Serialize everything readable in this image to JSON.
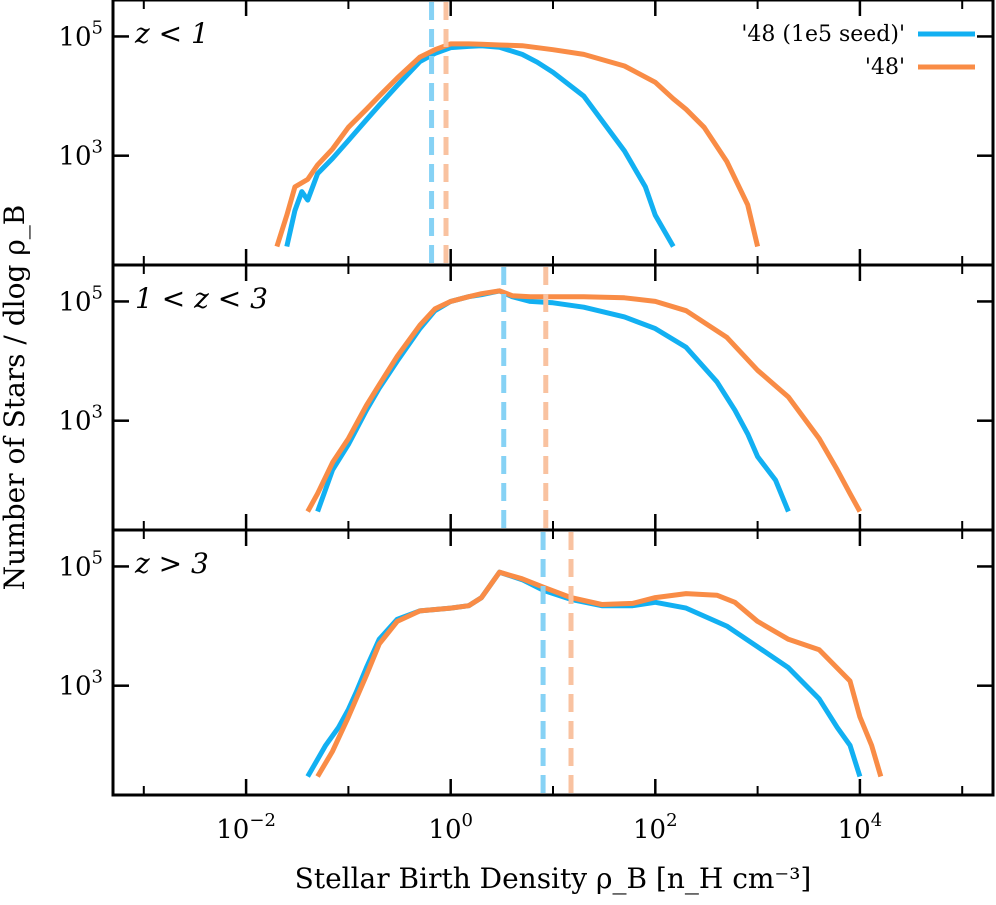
{
  "chart_data": {
    "type": "line",
    "xlabel": "Stellar Birth Density ρ_B [n_H cm⁻³]",
    "ylabel": "Number of Stars / dlog ρ_B",
    "x_scale": "log",
    "y_scale": "log",
    "xlim": [
      0.0005,
      200000
    ],
    "ylim": [
      20,
      300000
    ],
    "x_ticks": [
      {
        "value": 0.01,
        "base": "10",
        "exp": "−2"
      },
      {
        "value": 1,
        "base": "10",
        "exp": "0"
      },
      {
        "value": 100,
        "base": "10",
        "exp": "2"
      },
      {
        "value": 10000,
        "base": "10",
        "exp": "4"
      }
    ],
    "y_ticks": [
      {
        "value": 1000,
        "base": "10",
        "exp": "3"
      },
      {
        "value": 100000,
        "base": "10",
        "exp": "5"
      }
    ],
    "legend": {
      "placement": "top-right",
      "entries": [
        {
          "label": "'48 (1e5 seed)'",
          "color": "#12b0f2"
        },
        {
          "label": "'48'",
          "color": "#f98c46"
        }
      ]
    },
    "colors": {
      "seed": "#12b0f2",
      "base": "#f98c46",
      "seed_median": "#86d2f5",
      "base_median": "#f9c2a0"
    },
    "panels": [
      {
        "label": "z < 1",
        "series": [
          {
            "name": "'48 (1e5 seed)'",
            "color": "#12b0f2",
            "median": 0.65,
            "x": [
              0.025,
              0.03,
              0.035,
              0.04,
              0.05,
              0.07,
              0.1,
              0.15,
              0.2,
              0.3,
              0.5,
              0.7,
              1,
              1.5,
              2,
              3,
              5,
              7,
              10,
              20,
              50,
              80,
              100,
              150
            ],
            "y": [
              30,
              120,
              250,
              180,
              500,
              900,
              1800,
              4000,
              7000,
              15000,
              38000,
              52000,
              65000,
              68000,
              70000,
              66000,
              50000,
              37000,
              25000,
              10000,
              1200,
              300,
              100,
              30
            ]
          },
          {
            "name": "'48'",
            "color": "#f98c46",
            "median": 0.9,
            "x": [
              0.02,
              0.025,
              0.03,
              0.04,
              0.05,
              0.07,
              0.1,
              0.15,
              0.2,
              0.3,
              0.5,
              0.7,
              1,
              1.5,
              2,
              3,
              5,
              10,
              20,
              50,
              100,
              150,
              200,
              300,
              500,
              800,
              1000
            ],
            "y": [
              30,
              100,
              300,
              400,
              700,
              1300,
              3000,
              6000,
              10000,
              20000,
              45000,
              60000,
              75000,
              75000,
              74000,
              72000,
              70000,
              60000,
              50000,
              32000,
              17000,
              9000,
              6000,
              3000,
              800,
              150,
              30
            ]
          }
        ]
      },
      {
        "label": "1 < z < 3",
        "series": [
          {
            "name": "'48 (1e5 seed)'",
            "color": "#12b0f2",
            "median": 3.3,
            "x": [
              0.05,
              0.07,
              0.1,
              0.15,
              0.2,
              0.3,
              0.5,
              0.7,
              1,
              1.5,
              2,
              3,
              4,
              6,
              10,
              20,
              50,
              100,
              200,
              400,
              600,
              800,
              1000,
              1500,
              2000
            ],
            "y": [
              30,
              150,
              400,
              1500,
              3500,
              10000,
              35000,
              70000,
              100000,
              120000,
              130000,
              150000,
              120000,
              100000,
              95000,
              80000,
              55000,
              35000,
              17000,
              4500,
              1500,
              600,
              250,
              100,
              30
            ]
          },
          {
            "name": "'48'",
            "color": "#f98c46",
            "median": 8.5,
            "x": [
              0.04,
              0.05,
              0.07,
              0.1,
              0.15,
              0.2,
              0.3,
              0.5,
              0.7,
              1,
              1.5,
              2,
              3,
              4,
              6,
              10,
              20,
              50,
              100,
              200,
              500,
              1000,
              2000,
              4000,
              6000,
              8000,
              10000
            ],
            "y": [
              30,
              60,
              200,
              500,
              1800,
              4000,
              12000,
              40000,
              75000,
              100000,
              120000,
              135000,
              150000,
              125000,
              120000,
              120000,
              120000,
              115000,
              100000,
              70000,
              25000,
              7000,
              2500,
              500,
              150,
              60,
              30
            ]
          }
        ]
      },
      {
        "label": "z > 3",
        "series": [
          {
            "name": "'48 (1e5 seed)'",
            "color": "#12b0f2",
            "median": 8,
            "x": [
              0.04,
              0.06,
              0.08,
              0.1,
              0.12,
              0.15,
              0.2,
              0.3,
              0.5,
              1,
              1.5,
              2,
              3,
              5,
              8,
              15,
              30,
              60,
              100,
              200,
              500,
              1000,
              2000,
              4000,
              6000,
              8000,
              10000
            ],
            "y": [
              30,
              100,
              200,
              400,
              800,
              2000,
              6000,
              13000,
              18000,
              20000,
              22000,
              30000,
              80000,
              60000,
              40000,
              28000,
              22000,
              22000,
              25000,
              20000,
              10000,
              4500,
              2000,
              600,
              200,
              100,
              30
            ]
          },
          {
            "name": "'48'",
            "color": "#f98c46",
            "median": 15,
            "x": [
              0.05,
              0.07,
              0.1,
              0.15,
              0.2,
              0.3,
              0.5,
              1,
              1.5,
              2,
              3,
              5,
              8,
              15,
              30,
              60,
              100,
              200,
              400,
              600,
              1000,
              2000,
              4000,
              8000,
              10000,
              13000,
              16000
            ],
            "y": [
              30,
              80,
              300,
              1500,
              5000,
              12000,
              18000,
              20000,
              22000,
              30000,
              80000,
              62000,
              45000,
              30000,
              23000,
              24000,
              30000,
              35000,
              33000,
              25000,
              12000,
              6000,
              4000,
              1200,
              300,
              100,
              30
            ]
          }
        ]
      }
    ]
  }
}
